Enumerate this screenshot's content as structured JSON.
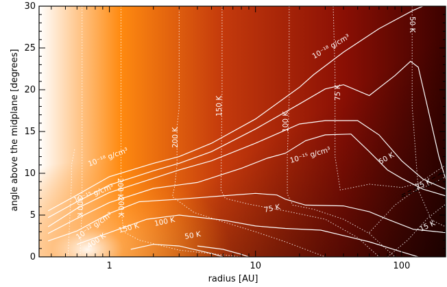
{
  "chart_data": {
    "type": "heatmap",
    "title": "",
    "xlabel": "radius [AU]",
    "ylabel": "angle above the midplane [degrees]",
    "x_scale": "log",
    "xlim": [
      0.33,
      200
    ],
    "ylim": [
      0,
      30
    ],
    "x_ticks": [
      {
        "v": 1,
        "label": "1"
      },
      {
        "v": 10,
        "label": "10"
      },
      {
        "v": 100,
        "label": "100"
      }
    ],
    "y_ticks": [
      {
        "v": 0,
        "label": "0"
      },
      {
        "v": 5,
        "label": "5"
      },
      {
        "v": 10,
        "label": "10"
      },
      {
        "v": 15,
        "label": "15"
      },
      {
        "v": 20,
        "label": "20"
      },
      {
        "v": 25,
        "label": "25"
      },
      {
        "v": 30,
        "label": "30"
      }
    ],
    "colormap": [
      "#ffffff",
      "#ff8a10",
      "#c43a0c",
      "#8a0f04",
      "#3d0200"
    ],
    "density_contours": [
      {
        "points": [
          [
            0.38,
            5.5
          ],
          [
            0.6,
            7.4
          ],
          [
            1,
            9.6
          ],
          [
            2,
            11.2
          ],
          [
            3,
            12.0
          ],
          [
            5,
            13.6
          ],
          [
            10,
            16.5
          ],
          [
            20,
            20.3
          ],
          [
            25,
            21.8
          ],
          [
            40,
            24.5
          ],
          [
            70,
            27.3
          ],
          [
            120,
            29.5
          ],
          [
            140,
            30
          ]
        ]
      },
      {
        "points": [
          [
            0.38,
            4.7
          ],
          [
            0.6,
            6.6
          ],
          [
            1,
            8.6
          ],
          [
            2,
            10.3
          ],
          [
            3,
            11.2
          ],
          [
            5,
            12.6
          ],
          [
            10,
            15.3
          ],
          [
            20,
            18.3
          ],
          [
            30,
            20.1
          ],
          [
            40,
            20.6
          ],
          [
            60,
            19.3
          ],
          [
            90,
            21.7
          ],
          [
            115,
            23.4
          ],
          [
            130,
            22.7
          ],
          [
            150,
            18
          ],
          [
            180,
            12
          ],
          [
            200,
            9.3
          ]
        ]
      },
      {
        "points": [
          [
            0.38,
            3.6
          ],
          [
            0.6,
            5.8
          ],
          [
            1,
            7.7
          ],
          [
            2,
            9.4
          ],
          [
            3,
            10.4
          ],
          [
            5,
            11.5
          ],
          [
            10,
            13.6
          ],
          [
            20,
            15.9
          ],
          [
            30,
            16.3
          ],
          [
            50,
            16.3
          ],
          [
            70,
            14.6
          ],
          [
            100,
            11.5
          ],
          [
            140,
            9.3
          ],
          [
            200,
            8.1
          ]
        ]
      },
      {
        "points": [
          [
            0.38,
            2.8
          ],
          [
            0.6,
            4.6
          ],
          [
            1,
            6.5
          ],
          [
            2,
            8.2
          ],
          [
            4,
            8.9
          ],
          [
            8,
            10.6
          ],
          [
            12,
            11.8
          ],
          [
            16,
            12.4
          ],
          [
            22,
            13.9
          ],
          [
            30,
            14.6
          ],
          [
            45,
            14.7
          ],
          [
            60,
            12.6
          ],
          [
            80,
            10.4
          ],
          [
            100,
            9.4
          ],
          [
            140,
            8.1
          ],
          [
            200,
            7.3
          ]
        ]
      },
      {
        "points": [
          [
            0.38,
            1.9
          ],
          [
            0.6,
            3.1
          ],
          [
            1,
            5.2
          ],
          [
            1.6,
            6.6
          ],
          [
            3,
            6.9
          ],
          [
            6,
            7.3
          ],
          [
            10,
            7.6
          ],
          [
            14,
            7.4
          ],
          [
            16,
            6.9
          ],
          [
            22,
            6.2
          ],
          [
            40,
            6.1
          ],
          [
            60,
            5.4
          ],
          [
            80,
            4.5
          ],
          [
            120,
            3.3
          ],
          [
            200,
            2.9
          ]
        ]
      },
      {
        "points": [
          [
            0.6,
            1.5
          ],
          [
            1,
            2.9
          ],
          [
            1.8,
            4.5
          ],
          [
            3,
            5.0
          ],
          [
            6,
            4.4
          ],
          [
            10,
            3.7
          ],
          [
            16,
            3.4
          ],
          [
            28,
            3.2
          ],
          [
            60,
            1.8
          ],
          [
            100,
            0.6
          ],
          [
            130,
            0
          ]
        ]
      },
      {
        "points": [
          [
            1.4,
            0.9
          ],
          [
            2,
            1.5
          ],
          [
            3,
            1.3
          ],
          [
            5,
            0.4
          ],
          [
            6,
            0
          ]
        ]
      },
      {
        "points": [
          [
            4,
            1.3
          ],
          [
            6,
            0.9
          ],
          [
            8,
            0.3
          ],
          [
            9,
            0
          ]
        ]
      }
    ],
    "temperature_contours": [
      {
        "label": "400 K",
        "points": [
          [
            0.52,
            0
          ],
          [
            0.53,
            3
          ],
          [
            0.55,
            9
          ],
          [
            0.55,
            11
          ],
          [
            0.58,
            13
          ]
        ]
      },
      {
        "label": "300 K",
        "points": [
          [
            0.63,
            0
          ],
          [
            0.65,
            6
          ],
          [
            0.65,
            30
          ]
        ]
      },
      {
        "label": "200 K",
        "points": [
          [
            1.2,
            30
          ],
          [
            1.2,
            6
          ],
          [
            1.25,
            3
          ],
          [
            1.6,
            2
          ],
          [
            3,
            0.8
          ],
          [
            8,
            0
          ]
        ]
      },
      {
        "label": "150 K",
        "points": [
          [
            3.0,
            30
          ],
          [
            3.0,
            17.9
          ],
          [
            2.9,
            15.6
          ],
          [
            2.9,
            11
          ],
          [
            2.8,
            8.5
          ],
          [
            2.7,
            7.2
          ],
          [
            3.8,
            5.3
          ],
          [
            6,
            4.2
          ],
          [
            10,
            3.0
          ],
          [
            16,
            1.8
          ],
          [
            30,
            0
          ]
        ]
      },
      {
        "label": "100 K",
        "points": [
          [
            5.9,
            30
          ],
          [
            5.9,
            20
          ],
          [
            5.8,
            8
          ],
          [
            6.2,
            7
          ],
          [
            9,
            6.3
          ],
          [
            16,
            5.5
          ],
          [
            30,
            4.5
          ],
          [
            50,
            2.3
          ],
          [
            70,
            0
          ]
        ]
      },
      {
        "label": "75 K",
        "points": [
          [
            17,
            30
          ],
          [
            17,
            19
          ],
          [
            16.5,
            12
          ],
          [
            16.5,
            7.5
          ],
          [
            18,
            6.2
          ],
          [
            25,
            5.7
          ],
          [
            40,
            4.5
          ],
          [
            60,
            2.8
          ],
          [
            90,
            0
          ]
        ]
      },
      {
        "label": "50 K",
        "points": [
          [
            34,
            30
          ],
          [
            35,
            22
          ],
          [
            35,
            12
          ],
          [
            38,
            8
          ],
          [
            60,
            8.7
          ],
          [
            100,
            8.3
          ],
          [
            130,
            8.8
          ],
          [
            150,
            9.5
          ],
          [
            200,
            11
          ]
        ]
      },
      {
        "label": "25 K",
        "points": [
          [
            60,
            2.9
          ],
          [
            90,
            6.2
          ],
          [
            120,
            7.8
          ],
          [
            160,
            8.7
          ],
          [
            200,
            9.6
          ]
        ]
      },
      {
        "label": "15 K",
        "points": [
          [
            80,
            0
          ],
          [
            110,
            2.0
          ],
          [
            150,
            4.6
          ],
          [
            200,
            6.3
          ]
        ]
      },
      {
        "label": "50 K",
        "points": [
          [
            118,
            30
          ],
          [
            118,
            18
          ],
          [
            130,
            8
          ],
          [
            160,
            4.4
          ],
          [
            200,
            3.6
          ]
        ]
      }
    ],
    "dashed_lines": [
      {
        "points": [
          [
            100,
            7.4
          ],
          [
            150,
            9.0
          ],
          [
            200,
            10.3
          ]
        ]
      },
      {
        "points": [
          [
            100,
            7.2
          ],
          [
            150,
            8.4
          ],
          [
            200,
            9.6
          ]
        ]
      }
    ],
    "density_labels": [
      "10⁻¹⁸ g/cm³",
      "10⁻¹⁵ g/cm³",
      "10⁻¹⁸ g/cm³",
      "10⁻¹⁵ g/cm³",
      "10⁻¹² g/cm³"
    ],
    "temperature_labels": [
      "200 K",
      "150 K",
      "100 K",
      "75 K",
      "50 K",
      "50 K",
      "25 K",
      "15 K",
      "100 K",
      "150 K",
      "75 K",
      "50 K",
      "200 K",
      "400 K",
      "300 K",
      "200 K"
    ]
  }
}
